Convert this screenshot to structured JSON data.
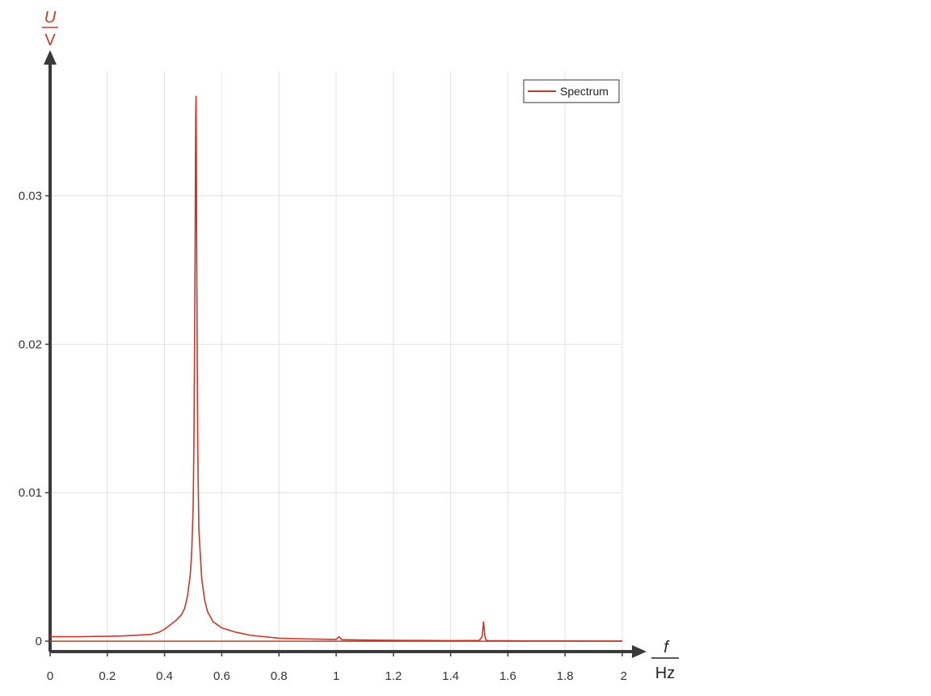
{
  "chart_data": {
    "type": "line",
    "title": "",
    "xlabel": {
      "symbol": "f",
      "unit": "Hz"
    },
    "ylabel": {
      "symbol": "U",
      "unit": "V"
    },
    "xlim": [
      0,
      2
    ],
    "ylim": [
      -0.0007,
      0.0384
    ],
    "x_ticks": [
      0,
      0.2,
      0.4,
      0.6,
      0.8,
      1,
      1.2,
      1.4,
      1.6,
      1.8,
      2
    ],
    "x_tick_labels": [
      "0",
      "0.2",
      "0.4",
      "0.6",
      "0.8",
      "1",
      "1.2",
      "1.4",
      "1.6",
      "1.8",
      "2"
    ],
    "y_ticks": [
      0,
      0.01,
      0.02,
      0.03
    ],
    "y_tick_labels": [
      "0",
      "0.01",
      "0.02",
      "0.03"
    ],
    "grid": true,
    "legend": {
      "position": "top-right",
      "entries": [
        "Spectrum"
      ]
    },
    "colors": {
      "series": "#c0392b",
      "axis": "#3a3a3a",
      "grid": "#e2e2e2",
      "axis_unit": "#c0392b"
    },
    "series": [
      {
        "name": "Spectrum",
        "x": [
          0,
          0.05,
          0.1,
          0.15,
          0.2,
          0.25,
          0.3,
          0.35,
          0.38,
          0.4,
          0.42,
          0.44,
          0.46,
          0.47,
          0.48,
          0.49,
          0.495,
          0.5,
          0.503,
          0.505,
          0.507,
          0.508,
          0.509,
          0.51,
          0.511,
          0.512,
          0.514,
          0.516,
          0.52,
          0.53,
          0.54,
          0.55,
          0.57,
          0.6,
          0.65,
          0.7,
          0.75,
          0.8,
          0.9,
          1.0,
          1.01,
          1.02,
          1.03,
          1.1,
          1.2,
          1.3,
          1.4,
          1.5,
          1.51,
          1.515,
          1.52,
          1.525,
          1.53,
          1.6,
          1.7,
          1.8,
          1.9,
          2.0
        ],
        "values": [
          0.0003,
          0.0003,
          0.0003,
          0.00032,
          0.00033,
          0.00035,
          0.0004,
          0.00045,
          0.0006,
          0.0008,
          0.0011,
          0.0014,
          0.0018,
          0.0022,
          0.003,
          0.0045,
          0.006,
          0.009,
          0.014,
          0.02,
          0.027,
          0.032,
          0.0355,
          0.0367,
          0.034,
          0.028,
          0.02,
          0.013,
          0.0075,
          0.0042,
          0.0028,
          0.002,
          0.0013,
          0.0009,
          0.0006,
          0.0004,
          0.0003,
          0.0002,
          0.00015,
          0.00012,
          0.0003,
          0.0001,
          0.0001,
          8e-05,
          6e-05,
          5e-05,
          4e-05,
          5e-05,
          0.0003,
          0.0013,
          0.0003,
          5e-05,
          4e-05,
          3e-05,
          2e-05,
          2e-05,
          1e-05,
          1e-05
        ]
      }
    ]
  }
}
